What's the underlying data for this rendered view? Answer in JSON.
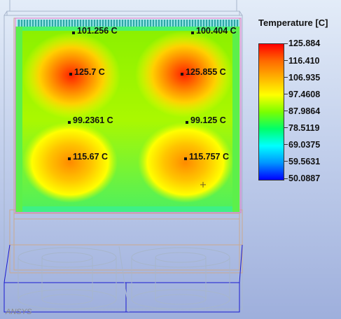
{
  "legend": {
    "title": "Temperature [C]",
    "levels": [
      "125.884",
      "116.410",
      "106.935",
      "97.4608",
      "87.9864",
      "78.5119",
      "69.0375",
      "59.5631",
      "50.0887"
    ],
    "min": 50.0887,
    "max": 125.884,
    "colors": [
      "#ff0000",
      "#ff6a00",
      "#ffb400",
      "#ffff00",
      "#7bff00",
      "#00ff6a",
      "#00ffff",
      "#0096ff",
      "#0000ff"
    ]
  },
  "probes": [
    {
      "label": "101.256 C"
    },
    {
      "label": "100.404 C"
    },
    {
      "label": "125.7 C"
    },
    {
      "label": "125.855 C"
    },
    {
      "label": "99.2361 C"
    },
    {
      "label": "99.125 C"
    },
    {
      "label": "115.67 C"
    },
    {
      "label": "115.757 C"
    }
  ],
  "watermark": "ANSYS",
  "colors": {
    "background_top": "#e3ecf8",
    "background_bottom": "#9eafdc",
    "plate_base": "#2ff05a",
    "hotspot": "#ff2200",
    "heatsink_fins": "#34c6c6",
    "wireframe_tan": "#caa98e",
    "wireframe_blue": "#1a1ad0",
    "wireframe_grey": "#a7b6cc"
  }
}
